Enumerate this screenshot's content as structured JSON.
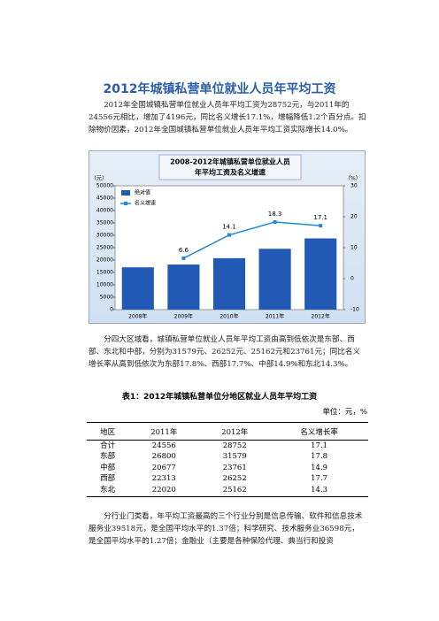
{
  "header": {
    "title": "2012年城镇私营单位就业人员年平均工资"
  },
  "paragraphs": [
    "2012年全国城镇私营单位就业人员年平均工资为28752元，与2011年的24556元相比，增加了4196元，同比名义增长17.1%，增幅降低1.2个百分点。扣除物价因素，2012年全国城镇私营单位就业人员年平均工资实际增长14.0%。",
    "分四大区域看，城镇私营单位就业人员年平均工资由高到低依次是东部、西部、东北和中部，分别为31579元、26252元、25162元和23761元；同比名义增长率从高到低依次为东部17.8%、西部17.7%、中部14.9%和东北14.3%。",
    "分行业门类看，年平均工资最高的三个行业分别是信息传输、软件和信息技术服务业39518元，是全国平均水平的1.37倍；科学研究、技术服务业36598元，是全国平均水平的1.27倍；金融业（主要是各种保险代理、典当行和投资"
  ],
  "chart_data": {
    "type": "bar",
    "title": [
      "2008-2012年城镇私营单位就业人员",
      "年平均工资及名义增速"
    ],
    "y_unit": "（元）",
    "y2_unit": "（%）",
    "categories": [
      "2008年",
      "2009年",
      "2010年",
      "2011年",
      "2012年"
    ],
    "series": [
      {
        "name": "绝对值",
        "type": "bar",
        "color": "#2159b5",
        "values": [
          17071,
          18199,
          20759,
          24556,
          28752
        ]
      },
      {
        "name": "名义增速",
        "type": "line",
        "axis": "y2",
        "color": "#1f8ad6",
        "values": [
          null,
          6.6,
          14.1,
          18.3,
          17.1
        ]
      }
    ],
    "ylim": [
      0,
      50000
    ],
    "yticks": [
      0,
      5000,
      10000,
      15000,
      20000,
      25000,
      30000,
      35000,
      40000,
      45000,
      50000
    ],
    "y2lim": [
      -10,
      30
    ],
    "y2ticks": [
      -10,
      0,
      10,
      20,
      30
    ],
    "legend": "upper left"
  },
  "table": {
    "title": "表1：2012年城镇私营单位分地区就业人员年平均工资",
    "unit": "单位：元，%",
    "header": [
      "地区",
      "2011年",
      "2012年",
      "名义增长率"
    ],
    "rows": [
      [
        "合计",
        "24556",
        "28752",
        "17.1"
      ],
      [
        "东部",
        "26800",
        "31579",
        "17.8"
      ],
      [
        "中部",
        "20677",
        "23761",
        "14.9"
      ],
      [
        "西部",
        "22313",
        "26252",
        "17.7"
      ],
      [
        "东北",
        "22020",
        "25162",
        "14.3"
      ]
    ]
  }
}
